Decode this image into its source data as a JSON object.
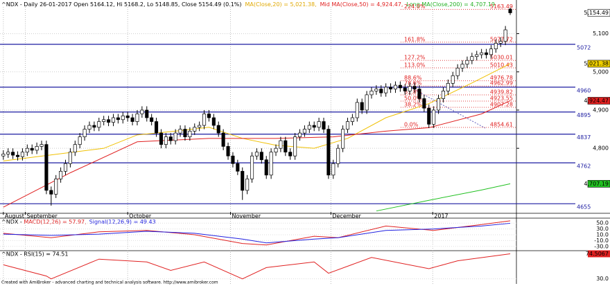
{
  "chart_data": {
    "type": "candlestick",
    "header": [
      {
        "text": "^NDX - Daily 26-01-2017 Open 5164.12, Hi 5168.2, Lo 5148.85, Close 5154.49 (0.1%)",
        "color": "#000000"
      },
      {
        "text": "MA(Close,20) = 5,021.38,",
        "color": "#e0a800"
      },
      {
        "text": "Mid MA(Close,50) = 4,924.47,",
        "color": "#e02020"
      },
      {
        "text": "Long MA(Close,200) = 4,707.19",
        "color": "#20b020"
      }
    ],
    "xlim": [
      -0.7,
      107.3
    ],
    "ylim": [
      4630,
      5188
    ],
    "xticks": [
      {
        "value": 0,
        "label": "August"
      },
      {
        "value": 4.6,
        "label": "September"
      },
      {
        "value": 26,
        "label": "October"
      },
      {
        "value": 47.5,
        "label": "November"
      },
      {
        "value": 68.5,
        "label": "December"
      },
      {
        "value": 89.8,
        "label": "2017"
      }
    ],
    "yticks": [
      {
        "value": 4800,
        "label": "4,800"
      },
      {
        "value": 4900,
        "label": "4,900"
      },
      {
        "value": 5000,
        "label": "5,000"
      },
      {
        "value": 5100,
        "label": "5,100"
      }
    ],
    "grid": true,
    "ohlc": {
      "open": [
        4780,
        4785,
        4790,
        4782,
        4778,
        4790,
        4800,
        4795,
        4805,
        4810,
        4690,
        4680,
        4720,
        4740,
        4760,
        4790,
        4810,
        4830,
        4850,
        4860,
        4855,
        4870,
        4875,
        4868,
        4880,
        4875,
        4885,
        4880,
        4870,
        4890,
        4900,
        4880,
        4870,
        4840,
        4810,
        4830,
        4820,
        4840,
        4850,
        4830,
        4845,
        4855,
        4860,
        4890,
        4880,
        4860,
        4840,
        4805,
        4780,
        4760,
        4740,
        4690,
        4720,
        4780,
        4790,
        4770,
        4730,
        4790,
        4800,
        4820,
        4790,
        4780,
        4830,
        4840,
        4850,
        4860,
        4855,
        4870,
        4850,
        4730,
        4760,
        4800,
        4850,
        4870,
        4880,
        4920,
        4900,
        4940,
        4950,
        4955,
        4945,
        4960,
        4955,
        4965,
        4958,
        4950,
        4962,
        4955,
        4930,
        4905,
        4863,
        4900,
        4930,
        4950,
        4970,
        4990,
        5010,
        5020,
        5030,
        5040,
        5045,
        5050,
        5045,
        5060,
        5075,
        5080,
        5164.12
      ],
      "high": [
        4795,
        4800,
        4800,
        4792,
        4800,
        4810,
        4810,
        4815,
        4820,
        4820,
        4700,
        4730,
        4750,
        4770,
        4800,
        4820,
        4840,
        4860,
        4870,
        4870,
        4880,
        4885,
        4885,
        4890,
        4890,
        4895,
        4895,
        4890,
        4900,
        4910,
        4910,
        4890,
        4880,
        4850,
        4840,
        4840,
        4850,
        4860,
        4860,
        4855,
        4865,
        4870,
        4900,
        4900,
        4890,
        4870,
        4850,
        4815,
        4790,
        4770,
        4750,
        4730,
        4790,
        4800,
        4800,
        4780,
        4800,
        4810,
        4830,
        4830,
        4800,
        4840,
        4850,
        4860,
        4870,
        4870,
        4880,
        4880,
        4860,
        4770,
        4810,
        4860,
        4880,
        4890,
        4930,
        4930,
        4950,
        4960,
        4965,
        4965,
        4970,
        4970,
        4975,
        4975,
        4968,
        4972,
        4972,
        4965,
        4940,
        4915,
        4910,
        4940,
        4960,
        4980,
        5000,
        5020,
        5030,
        5040,
        5050,
        5055,
        5060,
        5060,
        5070,
        5085,
        5090,
        5120,
        5168.2
      ],
      "low": [
        4770,
        4775,
        4772,
        4768,
        4768,
        4780,
        4785,
        4785,
        4795,
        4680,
        4650,
        4670,
        4710,
        4730,
        4750,
        4780,
        4800,
        4820,
        4840,
        4845,
        4845,
        4860,
        4858,
        4858,
        4865,
        4865,
        4870,
        4860,
        4860,
        4880,
        4870,
        4860,
        4830,
        4800,
        4800,
        4810,
        4810,
        4830,
        4820,
        4820,
        4835,
        4845,
        4850,
        4870,
        4850,
        4830,
        4795,
        4770,
        4750,
        4730,
        4665,
        4680,
        4710,
        4770,
        4760,
        4720,
        4720,
        4780,
        4790,
        4780,
        4770,
        4770,
        4820,
        4830,
        4840,
        4845,
        4845,
        4840,
        4720,
        4720,
        4750,
        4790,
        4840,
        4860,
        4870,
        4890,
        4890,
        4930,
        4940,
        4935,
        4935,
        4945,
        4945,
        4948,
        4940,
        4940,
        4945,
        4920,
        4895,
        4853,
        4853,
        4890,
        4920,
        4940,
        4960,
        4980,
        5000,
        5010,
        5020,
        5030,
        5035,
        5035,
        5035,
        5050,
        5065,
        5070,
        5148.85
      ],
      "close": [
        4785,
        4790,
        4782,
        4778,
        4790,
        4800,
        4795,
        4805,
        4810,
        4690,
        4680,
        4720,
        4740,
        4760,
        4790,
        4810,
        4830,
        4850,
        4860,
        4855,
        4870,
        4875,
        4868,
        4880,
        4875,
        4885,
        4880,
        4870,
        4890,
        4900,
        4880,
        4870,
        4840,
        4810,
        4830,
        4820,
        4840,
        4850,
        4830,
        4845,
        4855,
        4860,
        4890,
        4880,
        4860,
        4840,
        4805,
        4780,
        4760,
        4740,
        4690,
        4720,
        4780,
        4790,
        4770,
        4730,
        4790,
        4800,
        4820,
        4790,
        4780,
        4830,
        4840,
        4850,
        4860,
        4855,
        4870,
        4850,
        4730,
        4760,
        4800,
        4850,
        4870,
        4880,
        4920,
        4900,
        4940,
        4950,
        4955,
        4945,
        4960,
        4955,
        4965,
        4958,
        4950,
        4962,
        4955,
        4930,
        4905,
        4863,
        4900,
        4930,
        4950,
        4970,
        4990,
        5010,
        5020,
        5030,
        5040,
        5045,
        5050,
        5045,
        5060,
        5075,
        5080,
        5110,
        5154.49
      ]
    },
    "lines": [
      {
        "color": "#f0c000",
        "x": [
          0,
          21,
          28,
          36,
          43,
          50,
          57,
          65,
          72,
          80,
          89,
          98,
          106
        ],
        "values": [
          4767,
          4800,
          4835,
          4845,
          4855,
          4826,
          4808,
          4800,
          4826,
          4880,
          4917,
          4971,
          5021.38
        ]
      },
      {
        "color": "#e02020",
        "x": [
          0,
          14,
          28,
          43,
          57,
          69,
          80,
          89,
          100,
          106
        ],
        "values": [
          4646,
          4736,
          4817,
          4826,
          4826,
          4830,
          4845,
          4854,
          4890,
          4924.47
        ]
      },
      {
        "color": "#20c020",
        "x": [
          78,
          89,
          100,
          106
        ],
        "values": [
          4636,
          4664,
          4691,
          4707.19
        ]
      }
    ],
    "levels": [
      {
        "value": 5072,
        "label": "5072"
      },
      {
        "value": 4960,
        "label": "4960"
      },
      {
        "value": 4895,
        "label": "4895"
      },
      {
        "value": 4837,
        "label": "4837"
      },
      {
        "value": 4762,
        "label": "4762"
      },
      {
        "value": 4655,
        "label": "4655"
      }
    ],
    "fib": [
      {
        "pct": "224.0%",
        "value": 5163.49
      },
      {
        "pct": "161.8%",
        "value": 5077.72
      },
      {
        "pct": "127.2%",
        "value": 5030.01
      },
      {
        "pct": "113.0%",
        "value": 5010.43
      },
      {
        "pct": "88.6%",
        "value": 4976.78
      },
      {
        "pct": "78.6%",
        "value": 4962.99
      },
      {
        "pct": "61.8%",
        "value": 4939.82
      },
      {
        "pct": "50.0%",
        "value": 4923.55
      },
      {
        "pct": "38.2%",
        "value": 4907.28
      },
      {
        "pct": "0.0%",
        "value": 4854.61
      }
    ],
    "price_labels": [
      {
        "value": 5154.49,
        "label": "5,154.49",
        "color": "#ffffff"
      },
      {
        "value": 5021.38,
        "label": "5,021.38",
        "color": "#f0d000"
      },
      {
        "value": 4924.47,
        "label": "4,924.47",
        "color": "#e02020"
      },
      {
        "value": 4707.19,
        "label": "4,707.19",
        "color": "#20c020"
      }
    ],
    "macd": {
      "title": [
        {
          "text": "^NDX - ",
          "color": "#000000"
        },
        {
          "text": "MACD(12,26) = 57.97,",
          "color": "#e02020"
        },
        {
          "text": "Signal(12,26,9) = 49.43",
          "color": "#2020e0"
        }
      ],
      "ylim": [
        -40,
        60
      ],
      "yticks": [
        {
          "value": 50,
          "label": "50.0"
        },
        {
          "value": 30,
          "label": "30.0"
        },
        {
          "value": 10,
          "label": "10.0"
        },
        {
          "value": -10,
          "label": "-10.0"
        },
        {
          "value": -30,
          "label": "-30.0"
        }
      ],
      "x": [
        0,
        10,
        20,
        30,
        40,
        50,
        55,
        65,
        70,
        80,
        90,
        100,
        106
      ],
      "series": [
        {
          "color": "#e02020",
          "values": [
            15,
            0,
            20,
            25,
            10,
            -20,
            -25,
            5,
            0,
            40,
            25,
            45,
            57.97
          ]
        },
        {
          "color": "#2020e0",
          "values": [
            12,
            8,
            12,
            22,
            15,
            -5,
            -18,
            -5,
            0,
            25,
            30,
            40,
            49.43
          ]
        }
      ]
    },
    "rsi": {
      "title": "^NDX - RSI(15) = 74.51",
      "color": "#e02020",
      "ylim": [
        21,
        80
      ],
      "yticks": [
        {
          "value": 30,
          "label": "30.0"
        }
      ],
      "x": [
        0,
        9,
        10,
        20,
        30,
        35,
        42,
        50,
        55,
        65,
        68,
        77,
        89,
        95,
        106
      ],
      "values": [
        55,
        35,
        30,
        65,
        60,
        45,
        60,
        30,
        50,
        60,
        40,
        68,
        48,
        62,
        74.51
      ],
      "last_label": {
        "value": 74.51,
        "label": "74.5067"
      }
    },
    "footer": "Created with AmiBroker - advanced charting and technical analysis software. http://www.amibroker.com"
  }
}
